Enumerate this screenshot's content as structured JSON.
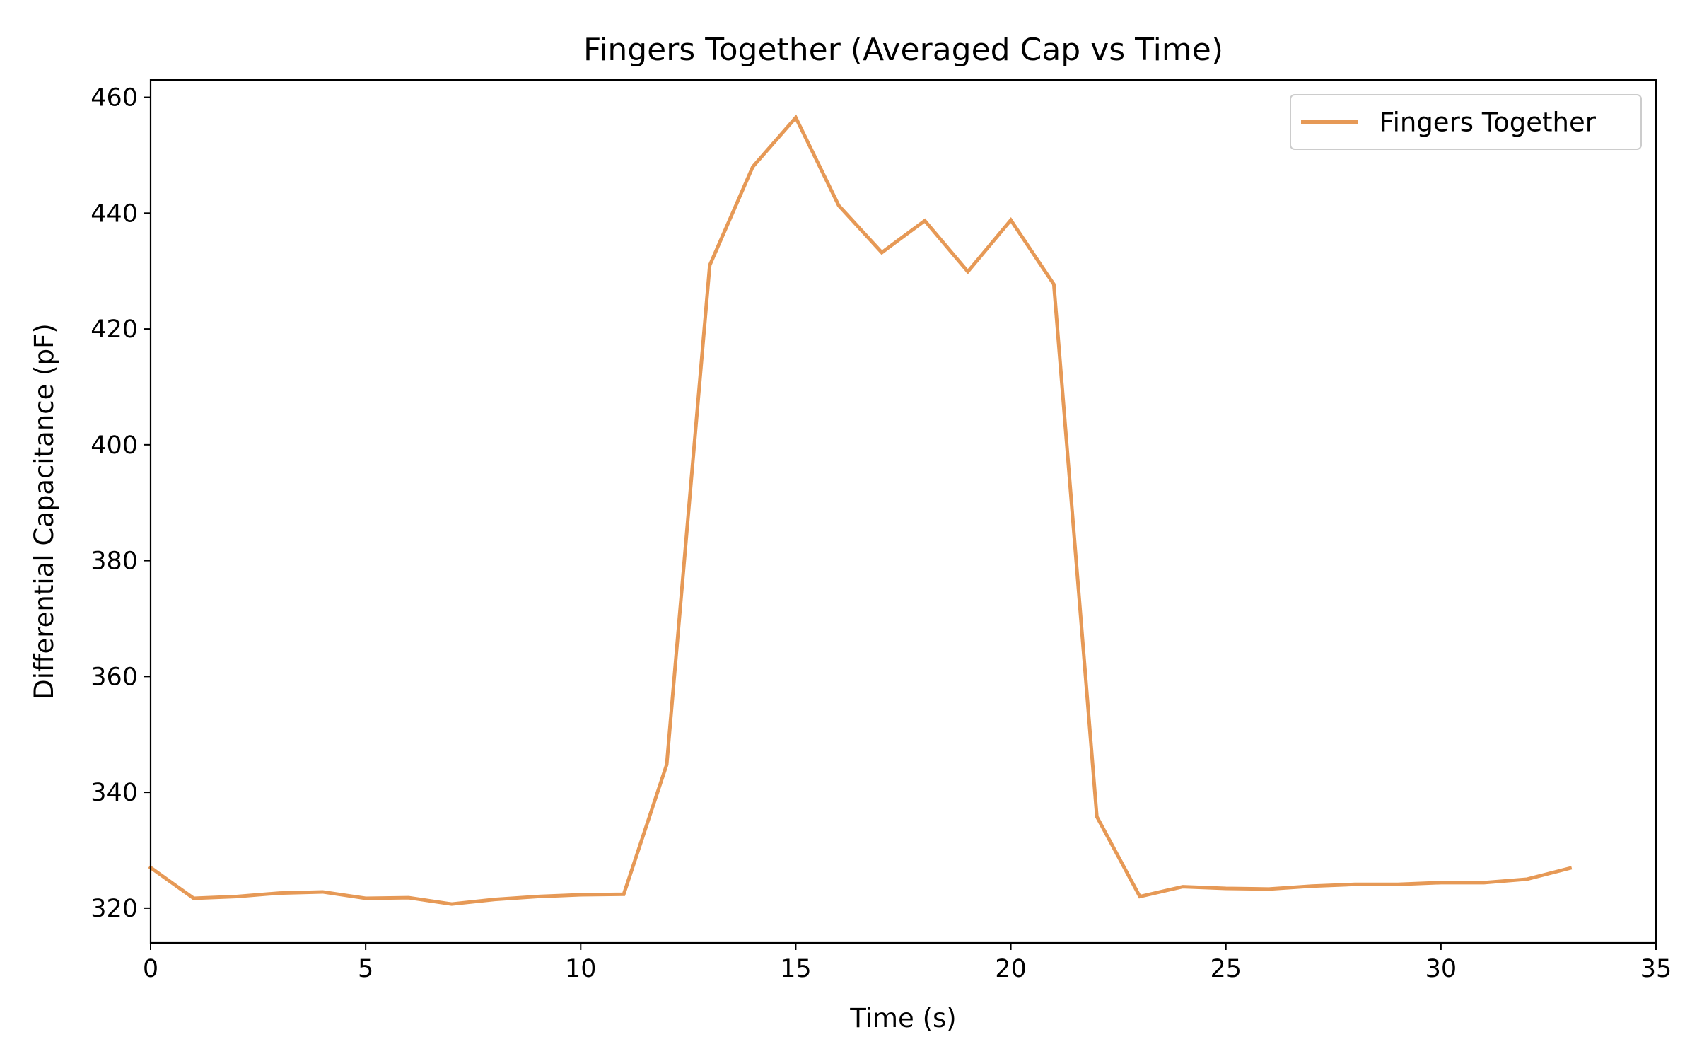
{
  "chart_data": {
    "type": "line",
    "title": "Fingers Together (Averaged Cap vs Time)",
    "xlabel": "Time (s)",
    "ylabel": "Differential Capacitance (pF)",
    "xlim": [
      0,
      35
    ],
    "ylim": [
      314,
      463
    ],
    "x_ticks": [
      0,
      5,
      10,
      15,
      20,
      25,
      30,
      35
    ],
    "y_ticks": [
      320,
      340,
      360,
      380,
      400,
      420,
      440,
      460
    ],
    "grid": false,
    "legend_position": "top-right",
    "series": [
      {
        "name": "Fingers Together",
        "color": "#e69956",
        "x": [
          0,
          1,
          2,
          3,
          4,
          5,
          6,
          7,
          8,
          9,
          10,
          11,
          12,
          13,
          14,
          15,
          16,
          17,
          18,
          19,
          20,
          21,
          22,
          23,
          24,
          25,
          26,
          27,
          28,
          29,
          30,
          31,
          32,
          33
        ],
        "y": [
          327.0,
          321.7,
          322.0,
          322.6,
          322.8,
          321.7,
          321.8,
          320.7,
          321.5,
          322.0,
          322.3,
          322.4,
          344.8,
          431.0,
          448.0,
          456.5,
          441.3,
          433.2,
          438.7,
          429.9,
          438.8,
          427.7,
          335.8,
          322.0,
          323.7,
          323.4,
          323.3,
          323.8,
          324.1,
          324.1,
          324.4,
          324.4,
          325.0,
          326.9
        ]
      }
    ]
  }
}
